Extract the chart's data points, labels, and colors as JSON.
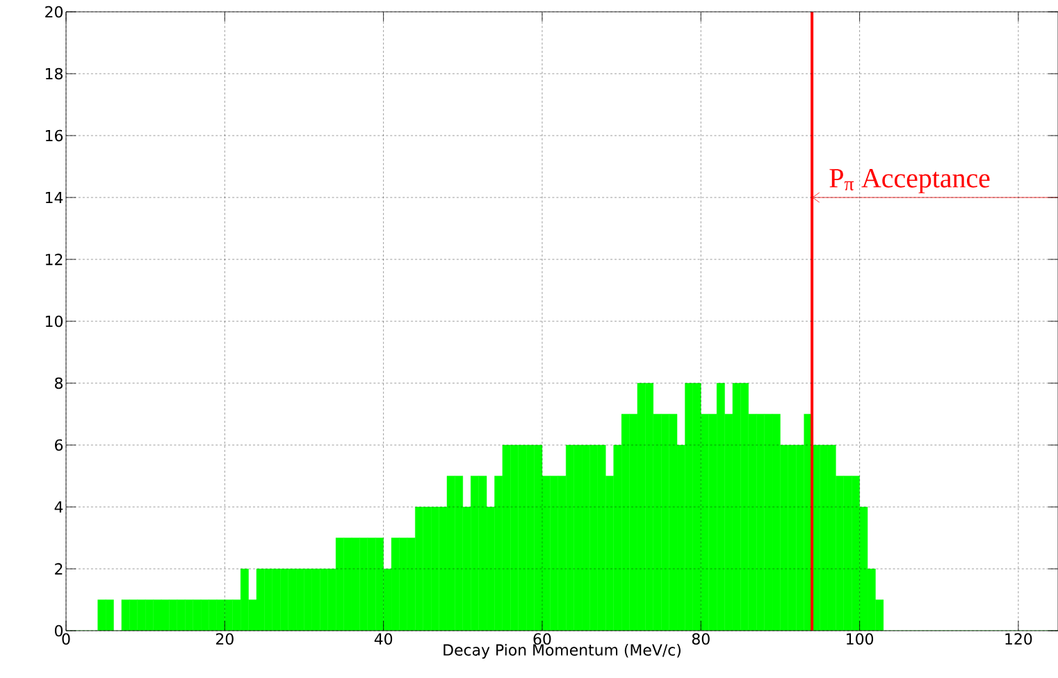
{
  "chart_data": {
    "type": "histogram",
    "xlabel": "Decay Pion Momentum (MeV/c)",
    "bins": [
      0,
      1,
      2,
      3,
      4,
      5,
      6,
      7,
      8,
      9,
      10,
      11,
      12,
      13,
      14,
      15,
      16,
      17,
      18,
      19,
      20,
      21,
      22,
      23,
      24,
      25,
      26,
      27,
      28,
      29,
      30,
      31,
      32,
      33,
      34,
      35,
      36,
      37,
      38,
      39,
      40,
      41,
      42,
      43,
      44,
      45,
      46,
      47,
      48,
      49,
      50,
      51,
      52,
      53,
      54,
      55,
      56,
      57,
      58,
      59,
      60,
      61,
      62,
      63,
      64,
      65,
      66,
      67,
      68,
      69,
      70,
      71,
      72,
      73,
      74,
      75,
      76,
      77,
      78,
      79,
      80,
      81,
      82,
      83,
      84,
      85,
      86,
      87,
      88,
      89,
      90,
      91,
      92,
      93,
      94,
      95,
      96,
      97,
      98,
      99,
      100,
      101,
      102,
      103,
      104,
      105,
      106,
      107,
      108,
      109,
      110,
      111,
      112,
      113,
      114,
      115,
      116,
      117,
      118,
      119,
      120,
      121,
      122,
      123,
      124,
      125
    ],
    "values": [
      0,
      0,
      0,
      0,
      1,
      1,
      0,
      1,
      1,
      1,
      1,
      1,
      1,
      1,
      1,
      1,
      1,
      1,
      1,
      1,
      1,
      1,
      2,
      1,
      2,
      2,
      2,
      2,
      2,
      2,
      2,
      2,
      2,
      2,
      3,
      3,
      3,
      3,
      3,
      3,
      2,
      3,
      3,
      3,
      4,
      4,
      4,
      4,
      5,
      5,
      4,
      5,
      5,
      4,
      5,
      6,
      6,
      6,
      6,
      6,
      5,
      5,
      5,
      6,
      6,
      6,
      6,
      6,
      5,
      6,
      7,
      7,
      8,
      8,
      7,
      7,
      7,
      6,
      8,
      8,
      7,
      7,
      8,
      7,
      8,
      8,
      7,
      7,
      7,
      7,
      6,
      6,
      6,
      7,
      6,
      6,
      6,
      5,
      5,
      5,
      4,
      2,
      1,
      0,
      0,
      0,
      0,
      0,
      0,
      0,
      0,
      0,
      0,
      0,
      0,
      0,
      0,
      0,
      0,
      0,
      0,
      0,
      0,
      0,
      0
    ],
    "color": "#00ff00",
    "xlim": [
      0,
      125
    ],
    "ylim": [
      0,
      20
    ],
    "xticks": [
      0,
      20,
      40,
      60,
      80,
      100,
      120
    ],
    "yticks": [
      0,
      2,
      4,
      6,
      8,
      10,
      12,
      14,
      16,
      18,
      20
    ],
    "grid": true,
    "ref_lines": [
      {
        "axis": "x",
        "value": 94,
        "label": "P$_{π}$ Acceptance",
        "color": "#ff0000"
      }
    ]
  }
}
